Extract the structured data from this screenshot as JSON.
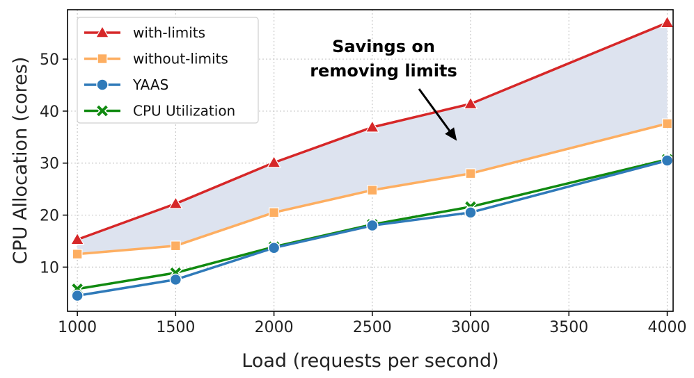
{
  "chart_data": {
    "type": "line",
    "title": "",
    "xlabel": "Load (requests per second)",
    "ylabel": "CPU Allocation (cores)",
    "x": [
      1000,
      1500,
      2000,
      2500,
      3000,
      4000
    ],
    "xlim": [
      950,
      4030
    ],
    "ylim": [
      1.5,
      59.5
    ],
    "xticks": [
      1000,
      1500,
      2000,
      2500,
      3000,
      3500,
      4000
    ],
    "yticks": [
      10,
      20,
      30,
      40,
      50
    ],
    "xtick_labels": [
      "1000",
      "1500",
      "2000",
      "2500",
      "3000",
      "3500",
      "4000"
    ],
    "ytick_labels": [
      "10",
      "20",
      "30",
      "40",
      "50"
    ],
    "grid": true,
    "legend_position": "top-left",
    "series": [
      {
        "name": "with-limits",
        "color": "#d62728",
        "marker": "triangle",
        "values": [
          15.3,
          22.2,
          30.1,
          36.9,
          41.4,
          57.0
        ]
      },
      {
        "name": "without-limits",
        "color": "#fdae61",
        "marker": "square",
        "values": [
          12.5,
          14.1,
          20.5,
          24.8,
          28.0,
          37.6
        ]
      },
      {
        "name": "YAAS",
        "color": "#2f7ab9",
        "marker": "circle",
        "values": [
          4.5,
          7.6,
          13.7,
          18.0,
          20.5,
          30.5
        ]
      },
      {
        "name": "CPU Utilization",
        "color": "#118a11",
        "marker": "x",
        "values": [
          5.8,
          8.9,
          13.9,
          18.2,
          21.6,
          30.7
        ]
      }
    ],
    "shaded_region": {
      "between": [
        "with-limits",
        "without-limits"
      ],
      "color": "#dde3ef"
    },
    "annotation": {
      "lines": [
        "Savings on",
        "removing limits"
      ],
      "arrow_to": {
        "x": 2930,
        "y": 34.3
      }
    }
  }
}
